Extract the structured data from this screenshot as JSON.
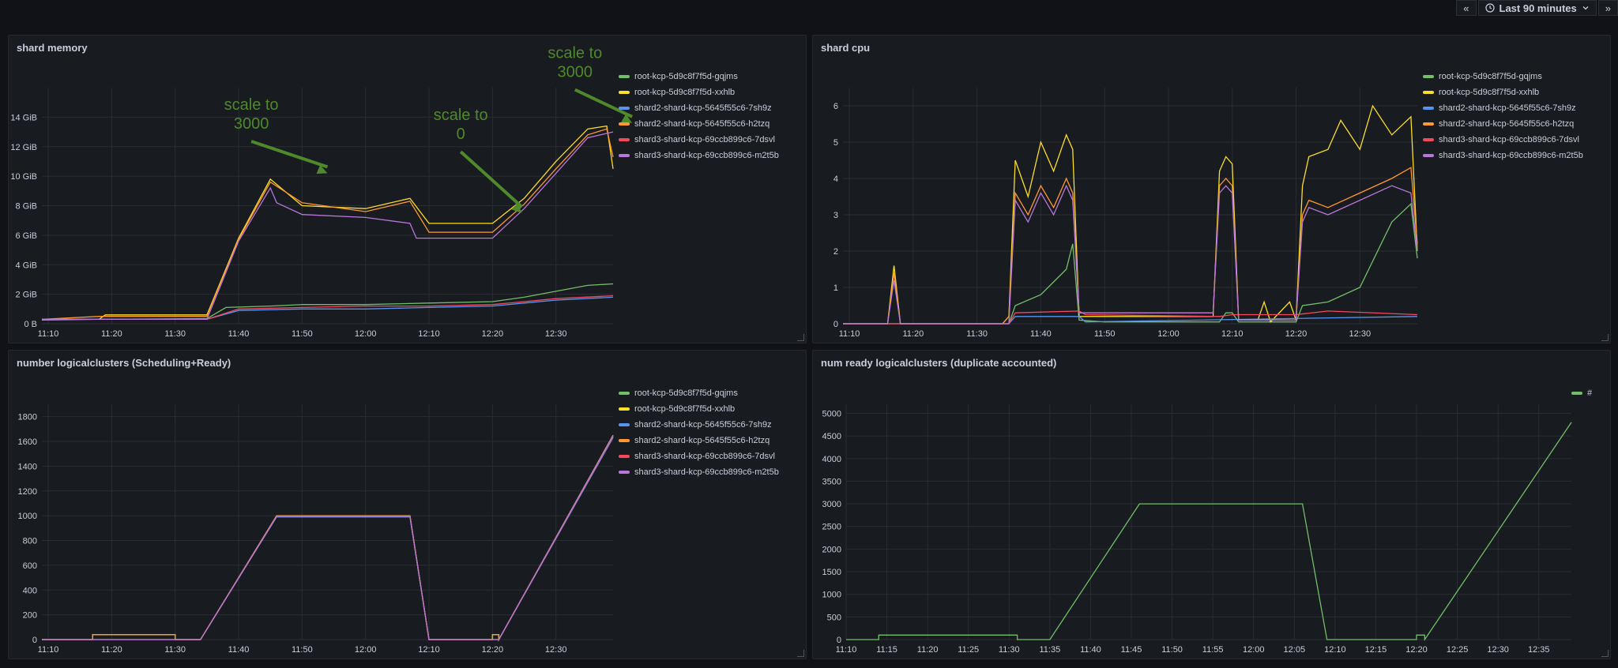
{
  "toolbar": {
    "prev_label": "«",
    "time_range": "Last 90 minutes",
    "next_label": "»",
    "clock_icon": "clock-icon",
    "chevron_icon": "chevron-down-icon"
  },
  "colors": {
    "green": "#73bf69",
    "yellow": "#fade2a",
    "blue": "#5794f2",
    "orange": "#ff9830",
    "red": "#f2495c",
    "purple": "#b877d9",
    "annotation": "#4e8a2b"
  },
  "series_names": [
    "root-kcp-5d9c8f7f5d-gqjms",
    "root-kcp-5d9c8f7f5d-xxhlb",
    "shard2-shard-kcp-5645f55c6-7sh9z",
    "shard2-shard-kcp-5645f55c6-h2tzq",
    "shard3-shard-kcp-69ccb899c6-7dsvl",
    "shard3-shard-kcp-69ccb899c6-m2t5b"
  ],
  "chart_data": [
    {
      "title": "shard memory",
      "type": "line",
      "x_ticks": [
        "11:10",
        "11:20",
        "11:30",
        "11:40",
        "11:50",
        "12:00",
        "12:10",
        "12:20",
        "12:30"
      ],
      "y_ticks": [
        "0 B",
        "2 GiB",
        "4 GiB",
        "6 GiB",
        "8 GiB",
        "10 GiB",
        "12 GiB",
        "14 GiB"
      ],
      "ylim": [
        0,
        16
      ],
      "xlim": [
        "11:09",
        "12:39"
      ],
      "unit": "GiB",
      "legend": "right",
      "annotations": [
        {
          "text": [
            "scale to",
            "3000"
          ],
          "x": "11:42",
          "y": 14.5,
          "arrow_to": [
            11.75,
            10.2
          ]
        },
        {
          "text": [
            "scale to",
            "0"
          ],
          "x": "12:15",
          "y": 13.8,
          "arrow_to": [
            12.26,
            7.5
          ]
        },
        {
          "text": [
            "scale to",
            "3000"
          ],
          "x": "12:33",
          "y": 18.0,
          "arrow_to": [
            12.55,
            13.6
          ]
        }
      ],
      "series": [
        {
          "name": "root-kcp-5d9c8f7f5d-gqjms",
          "color": "#73bf69",
          "x": [
            "11:09",
            "11:18",
            "11:35",
            "11:38",
            "11:45",
            "11:50",
            "12:00",
            "12:10",
            "12:20",
            "12:25",
            "12:30",
            "12:35",
            "12:39"
          ],
          "values": [
            0.25,
            0.3,
            0.35,
            1.1,
            1.2,
            1.3,
            1.3,
            1.4,
            1.5,
            1.8,
            2.2,
            2.6,
            2.7
          ]
        },
        {
          "name": "root-kcp-5d9c8f7f5d-xxhlb",
          "color": "#fade2a",
          "x": [
            "11:09",
            "11:18",
            "11:19",
            "11:35",
            "11:40",
            "11:45",
            "11:50",
            "12:00",
            "12:07",
            "12:10",
            "12:20",
            "12:25",
            "12:30",
            "12:35",
            "12:38",
            "12:39"
          ],
          "values": [
            0.3,
            0.3,
            0.6,
            0.6,
            5.8,
            9.8,
            8.0,
            7.8,
            8.5,
            6.8,
            6.8,
            8.5,
            11.0,
            13.2,
            13.4,
            10.5
          ]
        },
        {
          "name": "shard2-shard-kcp-5645f55c6-7sh9z",
          "color": "#5794f2",
          "x": [
            "11:09",
            "11:35",
            "11:40",
            "11:50",
            "12:00",
            "12:10",
            "12:20",
            "12:25",
            "12:30",
            "12:39"
          ],
          "values": [
            0.3,
            0.3,
            0.9,
            1.0,
            1.0,
            1.1,
            1.2,
            1.4,
            1.6,
            1.8
          ]
        },
        {
          "name": "shard2-shard-kcp-5645f55c6-h2tzq",
          "color": "#ff9830",
          "x": [
            "11:09",
            "11:18",
            "11:35",
            "11:40",
            "11:45",
            "11:50",
            "12:00",
            "12:07",
            "12:10",
            "12:20",
            "12:25",
            "12:30",
            "12:35",
            "12:38",
            "12:39"
          ],
          "values": [
            0.3,
            0.5,
            0.5,
            5.7,
            9.6,
            8.2,
            7.6,
            8.3,
            6.2,
            6.2,
            8.1,
            10.5,
            12.8,
            13.2,
            11.3
          ]
        },
        {
          "name": "shard3-shard-kcp-69ccb899c6-7dsvl",
          "color": "#f2495c",
          "x": [
            "11:09",
            "11:35",
            "11:40",
            "11:50",
            "12:00",
            "12:10",
            "12:20",
            "12:25",
            "12:30",
            "12:39"
          ],
          "values": [
            0.3,
            0.3,
            1.0,
            1.1,
            1.2,
            1.2,
            1.3,
            1.5,
            1.7,
            1.9
          ]
        },
        {
          "name": "shard3-shard-kcp-69ccb899c6-m2t5b",
          "color": "#b877d9",
          "x": [
            "11:09",
            "11:35",
            "11:40",
            "11:45",
            "11:46",
            "11:50",
            "12:00",
            "12:07",
            "12:08",
            "12:10",
            "12:20",
            "12:25",
            "12:30",
            "12:35",
            "12:39"
          ],
          "values": [
            0.3,
            0.3,
            5.6,
            9.2,
            8.2,
            7.4,
            7.2,
            6.8,
            5.8,
            5.8,
            5.8,
            7.8,
            10.2,
            12.6,
            13.0
          ]
        }
      ]
    },
    {
      "title": "shard cpu",
      "type": "line",
      "x_ticks": [
        "11:10",
        "11:20",
        "11:30",
        "11:40",
        "11:50",
        "12:00",
        "12:10",
        "12:20",
        "12:30"
      ],
      "y_ticks": [
        "0",
        "1",
        "2",
        "3",
        "4",
        "5",
        "6"
      ],
      "ylim": [
        0,
        6.5
      ],
      "xlim": [
        "11:09",
        "12:39"
      ],
      "legend": "right",
      "series": [
        {
          "name": "root-kcp-5d9c8f7f5d-gqjms",
          "color": "#73bf69",
          "x": [
            "11:09",
            "11:35",
            "11:36",
            "11:40",
            "11:44",
            "11:45",
            "11:46",
            "11:50",
            "12:08",
            "12:09",
            "12:10",
            "12:11",
            "12:20",
            "12:21",
            "12:25",
            "12:30",
            "12:35",
            "12:38",
            "12:39"
          ],
          "values": [
            0,
            0,
            0.5,
            0.8,
            1.5,
            2.2,
            0.1,
            0.05,
            0.05,
            0.3,
            0.3,
            0.05,
            0.05,
            0.5,
            0.6,
            1.0,
            2.8,
            3.3,
            1.8
          ]
        },
        {
          "name": "root-kcp-5d9c8f7f5d-xxhlb",
          "color": "#fade2a",
          "x": [
            "11:09",
            "11:16",
            "11:17",
            "11:18",
            "11:34",
            "11:35",
            "11:36",
            "11:38",
            "11:40",
            "11:42",
            "11:44",
            "11:45",
            "11:46",
            "11:47",
            "12:07",
            "12:08",
            "12:09",
            "12:10",
            "12:11",
            "12:14",
            "12:15",
            "12:16",
            "12:19",
            "12:20",
            "12:21",
            "12:22",
            "12:25",
            "12:27",
            "12:30",
            "12:32",
            "12:35",
            "12:38",
            "12:39"
          ],
          "values": [
            0,
            0,
            1.6,
            0,
            0,
            0.2,
            4.5,
            3.5,
            5.0,
            4.2,
            5.2,
            4.8,
            0.2,
            0.2,
            0.2,
            4.2,
            4.6,
            4.4,
            0.1,
            0.1,
            0.6,
            0.05,
            0.6,
            0.1,
            3.8,
            4.6,
            4.8,
            5.6,
            4.8,
            6.0,
            5.2,
            5.7,
            2.0
          ]
        },
        {
          "name": "shard2-shard-kcp-5645f55c6-7sh9z",
          "color": "#5794f2",
          "x": [
            "11:09",
            "11:35",
            "11:36",
            "11:46",
            "11:47",
            "12:39"
          ],
          "values": [
            0,
            0,
            0.2,
            0.2,
            0.05,
            0.2
          ]
        },
        {
          "name": "shard2-shard-kcp-5645f55c6-h2tzq",
          "color": "#ff9830",
          "x": [
            "11:09",
            "11:16",
            "11:17",
            "11:18",
            "11:34",
            "11:35",
            "11:36",
            "11:38",
            "11:40",
            "11:42",
            "11:44",
            "11:45",
            "11:46",
            "11:47",
            "12:07",
            "12:08",
            "12:09",
            "12:10",
            "12:11",
            "12:20",
            "12:21",
            "12:22",
            "12:25",
            "12:30",
            "12:35",
            "12:38",
            "12:39"
          ],
          "values": [
            0,
            0,
            1.4,
            0,
            0,
            0.2,
            3.6,
            3.0,
            3.8,
            3.2,
            4.0,
            3.6,
            0.3,
            0.3,
            0.3,
            3.8,
            4.0,
            3.8,
            0.1,
            0.1,
            3.0,
            3.4,
            3.2,
            3.6,
            4.0,
            4.3,
            2.2
          ]
        },
        {
          "name": "shard3-shard-kcp-69ccb899c6-7dsvl",
          "color": "#f2495c",
          "x": [
            "11:09",
            "11:35",
            "11:36",
            "11:46",
            "11:47",
            "12:08",
            "12:10",
            "12:20",
            "12:25",
            "12:39"
          ],
          "values": [
            0,
            0,
            0.3,
            0.35,
            0.25,
            0.2,
            0.25,
            0.25,
            0.35,
            0.25
          ]
        },
        {
          "name": "shard3-shard-kcp-69ccb899c6-m2t5b",
          "color": "#b877d9",
          "x": [
            "11:09",
            "11:16",
            "11:17",
            "11:18",
            "11:35",
            "11:36",
            "11:38",
            "11:40",
            "11:42",
            "11:44",
            "11:45",
            "11:46",
            "11:47",
            "12:07",
            "12:08",
            "12:09",
            "12:10",
            "12:11",
            "12:20",
            "12:21",
            "12:22",
            "12:25",
            "12:30",
            "12:35",
            "12:38",
            "12:39"
          ],
          "values": [
            0,
            0,
            1.2,
            0,
            0,
            3.4,
            2.8,
            3.6,
            3.0,
            3.8,
            3.4,
            0.3,
            0.3,
            0.3,
            3.6,
            3.8,
            3.6,
            0.1,
            0.1,
            2.8,
            3.2,
            3.0,
            3.4,
            3.8,
            3.6,
            2.0
          ]
        }
      ]
    },
    {
      "title": "number logicalclusters (Scheduling+Ready)",
      "type": "line",
      "x_ticks": [
        "11:10",
        "11:20",
        "11:30",
        "11:40",
        "11:50",
        "12:00",
        "12:10",
        "12:20",
        "12:30"
      ],
      "y_ticks": [
        "0",
        "200",
        "400",
        "600",
        "800",
        "1000",
        "1200",
        "1400",
        "1600",
        "1800"
      ],
      "ylim": [
        0,
        1900
      ],
      "xlim": [
        "11:09",
        "12:39"
      ],
      "legend": "right",
      "series": [
        {
          "name": "root-kcp-5d9c8f7f5d-gqjms",
          "color": "#73bf69",
          "x": [
            "11:09",
            "11:17",
            "11:17",
            "11:30",
            "11:30",
            "11:34",
            "11:46",
            "12:07",
            "12:10",
            "12:20",
            "12:20",
            "12:21",
            "12:21",
            "12:39"
          ],
          "values": [
            0,
            0,
            40,
            40,
            0,
            0,
            1000,
            1000,
            0,
            0,
            40,
            40,
            0,
            1650
          ]
        },
        {
          "name": "root-kcp-5d9c8f7f5d-xxhlb",
          "color": "#fade2a",
          "x": [
            "11:09",
            "11:17",
            "11:17",
            "11:30",
            "11:30",
            "11:34",
            "11:46",
            "12:07",
            "12:10",
            "12:20",
            "12:20",
            "12:21",
            "12:21",
            "12:39"
          ],
          "values": [
            0,
            0,
            40,
            40,
            0,
            0,
            1000,
            1000,
            0,
            0,
            40,
            40,
            0,
            1640
          ]
        },
        {
          "name": "shard2-shard-kcp-5645f55c6-7sh9z",
          "color": "#5794f2",
          "x": [
            "11:09",
            "11:34",
            "11:46",
            "12:07",
            "12:10",
            "12:21",
            "12:39"
          ],
          "values": [
            0,
            0,
            990,
            990,
            0,
            0,
            1630
          ]
        },
        {
          "name": "shard2-shard-kcp-5645f55c6-h2tzq",
          "color": "#ff9830",
          "x": [
            "11:09",
            "11:17",
            "11:17",
            "11:30",
            "11:30",
            "11:34",
            "11:46",
            "12:07",
            "12:10",
            "12:20",
            "12:20",
            "12:21",
            "12:21",
            "12:39"
          ],
          "values": [
            0,
            0,
            40,
            40,
            0,
            0,
            1000,
            1000,
            0,
            0,
            40,
            40,
            0,
            1650
          ]
        },
        {
          "name": "shard3-shard-kcp-69ccb899c6-7dsvl",
          "color": "#f2495c",
          "x": [
            "11:09",
            "11:34",
            "11:46",
            "12:07",
            "12:10",
            "12:21",
            "12:39"
          ],
          "values": [
            0,
            0,
            995,
            995,
            0,
            0,
            1640
          ]
        },
        {
          "name": "shard3-shard-kcp-69ccb899c6-m2t5b",
          "color": "#b877d9",
          "x": [
            "11:09",
            "11:34",
            "11:46",
            "12:07",
            "12:10",
            "12:21",
            "12:39"
          ],
          "values": [
            0,
            0,
            995,
            995,
            0,
            0,
            1645
          ]
        }
      ]
    },
    {
      "title": "num ready logicalclusters (duplicate accounted)",
      "type": "line",
      "x_ticks": [
        "11:10",
        "11:15",
        "11:20",
        "11:25",
        "11:30",
        "11:35",
        "11:40",
        "11:45",
        "11:50",
        "11:55",
        "12:00",
        "12:05",
        "12:10",
        "12:15",
        "12:20",
        "12:25",
        "12:30",
        "12:35"
      ],
      "y_ticks": [
        "0",
        "500",
        "1000",
        "1500",
        "2000",
        "2500",
        "3000",
        "3500",
        "4000",
        "4500",
        "5000"
      ],
      "ylim": [
        0,
        5200
      ],
      "xlim": [
        "11:10",
        "12:39"
      ],
      "legend": "top-right",
      "series": [
        {
          "name": "#",
          "color": "#73bf69",
          "x": [
            "11:10",
            "11:14",
            "11:14",
            "11:31",
            "11:31",
            "11:35",
            "11:46",
            "12:06",
            "12:09",
            "12:20",
            "12:20",
            "12:21",
            "12:21",
            "12:39"
          ],
          "values": [
            0,
            0,
            100,
            100,
            0,
            0,
            3000,
            3000,
            0,
            0,
            100,
            100,
            0,
            4800
          ]
        }
      ]
    }
  ]
}
